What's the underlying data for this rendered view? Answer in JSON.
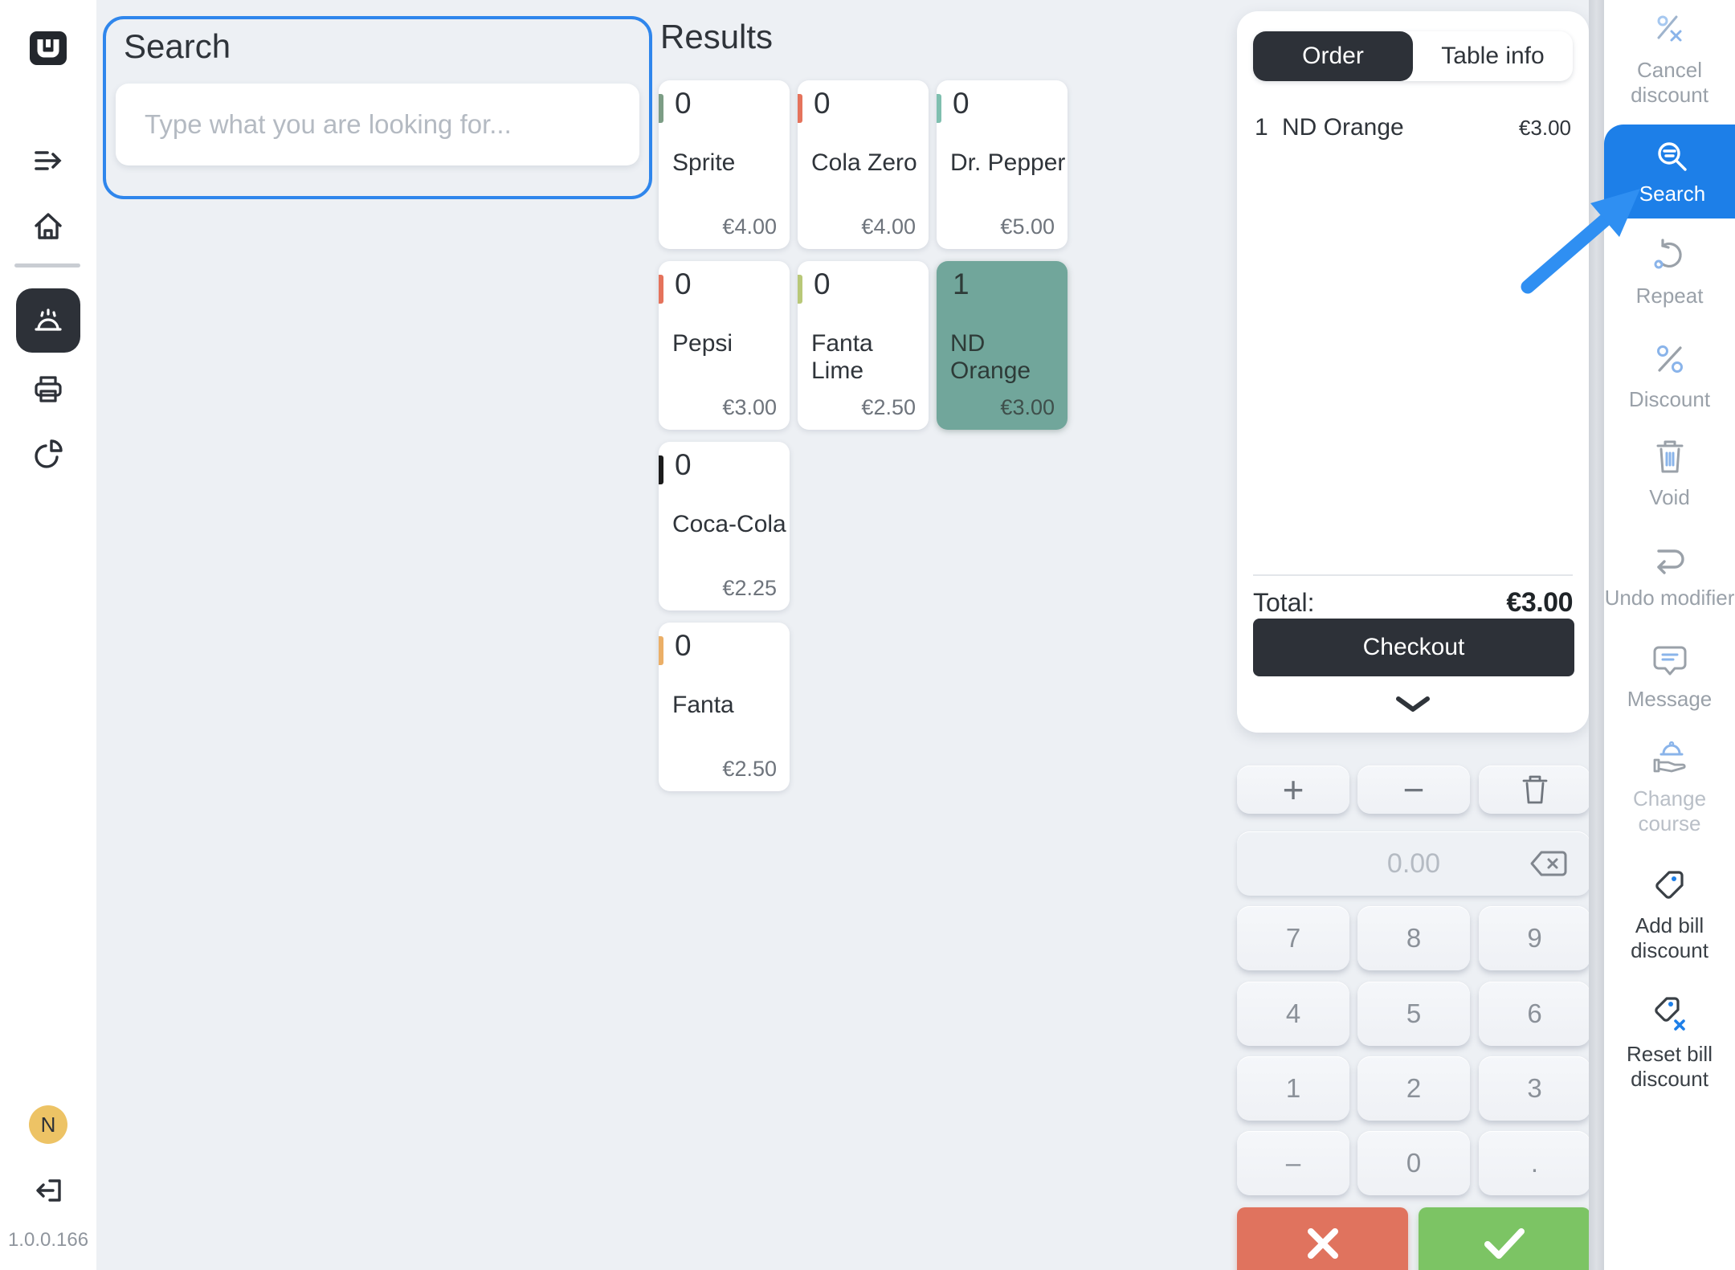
{
  "app": {
    "version": "1.0.0.166",
    "avatar_initial": "N"
  },
  "search_panel": {
    "title": "Search",
    "placeholder": "Type what you are looking for..."
  },
  "results": {
    "title": "Results",
    "products": [
      {
        "name": "Sprite",
        "count": "0",
        "price": "€4.00",
        "accent": "#7C9D85",
        "selected": false
      },
      {
        "name": "Cola Zero",
        "count": "0",
        "price": "€4.00",
        "accent": "#E5735C",
        "selected": false
      },
      {
        "name": "Dr. Pepper",
        "count": "0",
        "price": "€5.00",
        "accent": "#7FBFAF",
        "selected": false
      },
      {
        "name": "Pepsi",
        "count": "0",
        "price": "€3.00",
        "accent": "#E5735C",
        "selected": false
      },
      {
        "name": "Fanta Lime",
        "count": "0",
        "price": "€2.50",
        "accent": "#B8C878",
        "selected": false
      },
      {
        "name": "ND Orange",
        "count": "1",
        "price": "€3.00",
        "accent": "#71A69B",
        "selected": true
      },
      {
        "name": "Coca-Cola",
        "count": "0",
        "price": "€2.25",
        "accent": "#1C1C1C",
        "selected": false
      },
      {
        "name": "Fanta",
        "count": "0",
        "price": "€2.50",
        "accent": "#EBAF67",
        "selected": false
      }
    ]
  },
  "order_panel": {
    "tabs": [
      {
        "label": "Order",
        "active": true
      },
      {
        "label": "Table info",
        "active": false
      }
    ],
    "items": [
      {
        "qty": "1",
        "name": "ND Orange",
        "price": "€3.00"
      }
    ],
    "total_label": "Total:",
    "total_value": "€3.00",
    "checkout_label": "Checkout"
  },
  "numpad": {
    "plus_label": "+",
    "minus_label": "−",
    "display_value": "0.00",
    "keys": [
      "7",
      "8",
      "9",
      "4",
      "5",
      "6",
      "1",
      "2",
      "3",
      "–",
      "0",
      "."
    ]
  },
  "action_bar": {
    "items": [
      {
        "label": "Cancel discount",
        "icon": "percent-x",
        "state": "disabled"
      },
      {
        "label": "Search",
        "icon": "search",
        "state": "active"
      },
      {
        "label": "Repeat",
        "icon": "repeat",
        "state": "disabled"
      },
      {
        "label": "Discount",
        "icon": "percent",
        "state": "disabled"
      },
      {
        "label": "Void",
        "icon": "trash-lines",
        "state": "disabled"
      },
      {
        "label": "Undo modifier",
        "icon": "undo",
        "state": "disabled"
      },
      {
        "label": "Message",
        "icon": "message",
        "state": "disabled"
      },
      {
        "label": "Change course",
        "icon": "change-course",
        "state": "dim"
      },
      {
        "label": "Add bill discount",
        "icon": "tag",
        "state": "enabled"
      },
      {
        "label": "Reset bill discount",
        "icon": "tag-x",
        "state": "enabled"
      }
    ]
  },
  "colors": {
    "accent_blue": "#1d7fe8",
    "charcoal": "#2d3138",
    "background": "#edf0f4",
    "danger": "#e0735e",
    "success": "#7cc464",
    "selected_card": "#71A69B"
  }
}
